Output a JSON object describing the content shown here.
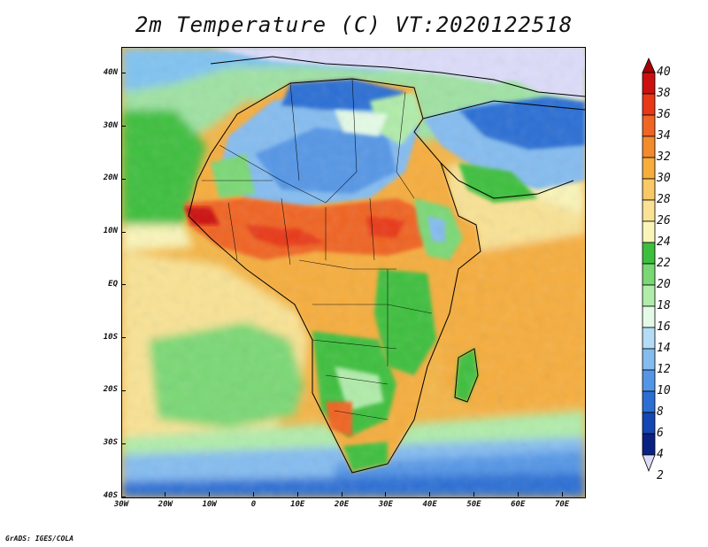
{
  "title": "2m Temperature (C) VT:2020122518",
  "credit": "GrADS: IGES/COLA",
  "map": {
    "region": "Africa",
    "variable": "2m temperature",
    "units": "C",
    "lon_range": [
      -30,
      75
    ],
    "lat_range": [
      -40,
      45
    ],
    "lon_ticks": [
      "30W",
      "20W",
      "10W",
      "0",
      "10E",
      "20E",
      "30E",
      "40E",
      "50E",
      "60E",
      "70E"
    ],
    "lat_ticks": [
      "40N",
      "30N",
      "20N",
      "10N",
      "EQ",
      "10S",
      "20S",
      "30S",
      "40S"
    ],
    "lon_tick_values": [
      -30,
      -20,
      -10,
      0,
      10,
      20,
      30,
      40,
      50,
      60,
      70
    ],
    "lat_tick_values": [
      40,
      30,
      20,
      10,
      0,
      -10,
      -20,
      -30,
      -40
    ]
  },
  "legend": {
    "levels": [
      "40",
      "38",
      "36",
      "34",
      "32",
      "30",
      "28",
      "26",
      "24",
      "22",
      "20",
      "18",
      "16",
      "14",
      "12",
      "10",
      "8",
      "6",
      "4",
      "2"
    ],
    "colors": [
      "#a80000",
      "#cc1010",
      "#e83818",
      "#f06424",
      "#f38a2c",
      "#f6ad3c",
      "#f8c964",
      "#f9e294",
      "#f9f4b8",
      "#3cbf3c",
      "#7ad874",
      "#b0ecaa",
      "#e4fae6",
      "#b4dcf6",
      "#84bcf0",
      "#5496e6",
      "#2b6ed4",
      "#1446b4",
      "#0a2184",
      "#dcdcfa"
    ],
    "top_color": "#a80000",
    "bottom_color": "#dcdcfa"
  }
}
